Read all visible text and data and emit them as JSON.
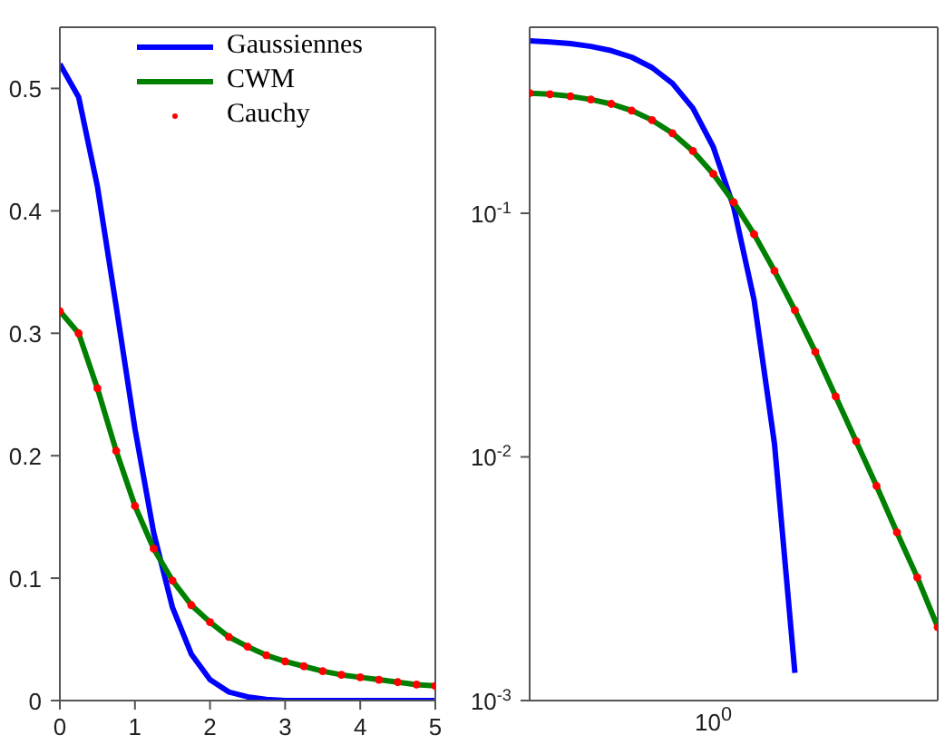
{
  "chart_data": [
    {
      "type": "line",
      "x": [
        0,
        0.25,
        0.5,
        0.75,
        1,
        1.25,
        1.5,
        1.75,
        2,
        2.25,
        2.5,
        2.75,
        3,
        3.25,
        3.5,
        3.75,
        4,
        4.25,
        4.5,
        4.75,
        5
      ],
      "xlim": [
        0,
        5
      ],
      "xticks": [
        0,
        1,
        2,
        3,
        4,
        5
      ],
      "ylim": [
        0,
        0.55
      ],
      "yticks": [
        0,
        0.1,
        0.2,
        0.3,
        0.4,
        0.5
      ],
      "legend": "top",
      "series": [
        {
          "name": "Gaussiennes",
          "color": "#0000ff",
          "values": [
            0.52,
            0.493,
            0.42,
            0.322,
            0.222,
            0.137,
            0.076,
            0.038,
            0.017,
            0.007,
            0.003,
            0.001,
            0,
            0,
            0,
            0,
            0,
            0,
            0,
            0,
            0
          ]
        },
        {
          "name": "CWM",
          "color": "#008000",
          "values": [
            0.318,
            0.3,
            0.255,
            0.204,
            0.159,
            0.124,
            0.098,
            0.078,
            0.064,
            0.052,
            0.044,
            0.037,
            0.032,
            0.028,
            0.024,
            0.021,
            0.019,
            0.017,
            0.015,
            0.013,
            0.012
          ]
        },
        {
          "name": "Cauchy",
          "color": "#ff0000",
          "type": "scatter",
          "values": [
            0.318,
            0.3,
            0.255,
            0.204,
            0.159,
            0.124,
            0.098,
            0.078,
            0.064,
            0.052,
            0.044,
            0.037,
            0.032,
            0.028,
            0.024,
            0.021,
            0.019,
            0.017,
            0.015,
            0.013,
            0.012
          ]
        }
      ]
    },
    {
      "type": "line",
      "log": "y",
      "categories": [
        null,
        null,
        null,
        null,
        null,
        null,
        null,
        null,
        null,
        null,
        null,
        null,
        null,
        null,
        null,
        null,
        null,
        null,
        null,
        null,
        null
      ],
      "ylim": [
        0.001,
        0.58
      ],
      "yticks": [
        {
          "value": 0.001,
          "label": "10$^{-3}$"
        },
        {
          "value": 0.01,
          "label": "10$^{-2}$"
        },
        {
          "value": 0.1,
          "label": "10$^{-1}$"
        }
      ],
      "annotations": [
        "10$^{0}$"
      ],
      "series": [
        {
          "color": "#0000ff",
          "values": [
            0.51,
            0.505,
            0.497,
            0.484,
            0.465,
            0.437,
            0.396,
            0.341,
            0.27,
            0.187,
            0.106,
            0.044,
            0.0113,
            0.0013,
            null,
            null,
            null,
            null,
            null,
            null,
            null
          ]
        },
        {
          "color": "#008000",
          "values": [
            0.311,
            0.308,
            0.302,
            0.293,
            0.281,
            0.264,
            0.241,
            0.213,
            0.18,
            0.145,
            0.111,
            0.082,
            0.058,
            0.04,
            0.027,
            0.0177,
            0.0116,
            0.0076,
            0.0049,
            0.0032,
            0.002
          ]
        },
        {
          "color": "#ff0000",
          "type": "scatter",
          "values": [
            0.311,
            0.308,
            0.302,
            0.293,
            0.281,
            0.264,
            0.241,
            0.213,
            0.18,
            0.145,
            0.111,
            0.082,
            0.058,
            0.04,
            0.027,
            0.0177,
            0.0116,
            0.0076,
            0.0049,
            0.0032,
            0.002
          ]
        }
      ]
    }
  ]
}
